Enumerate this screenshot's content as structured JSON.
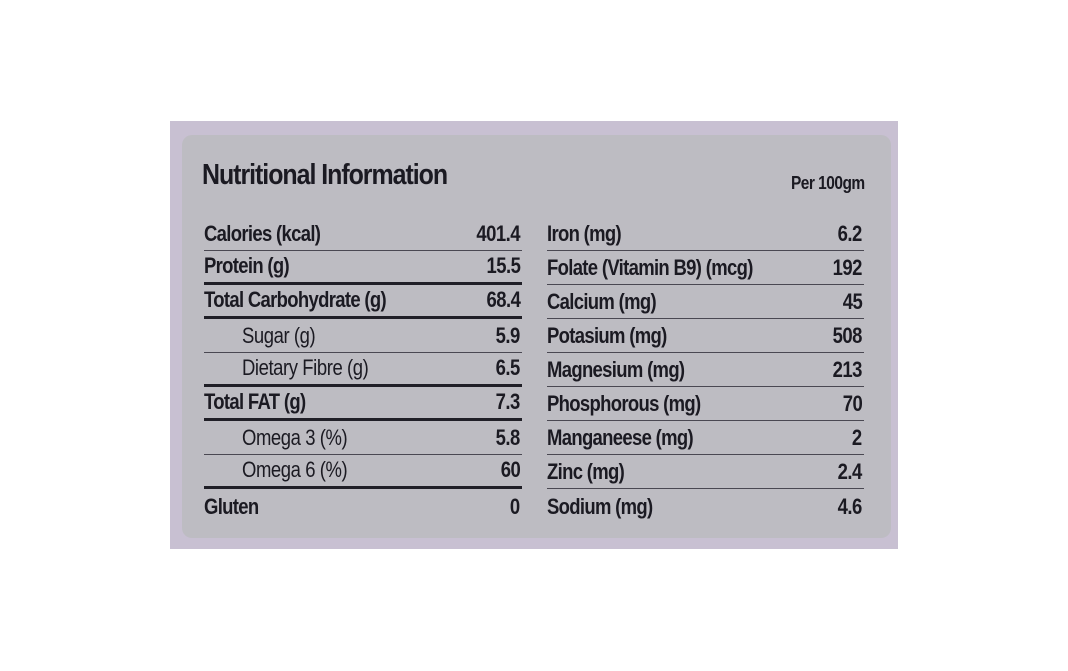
{
  "panel": {
    "title": "Nutritional Information",
    "per": "Per 100gm"
  },
  "left_rows": [
    {
      "name": "Calories (kcal)",
      "value": "401.4",
      "indent": false
    },
    {
      "name": "Protein (g)",
      "value": "15.5",
      "indent": false
    },
    {
      "name": "Total Carbohydrate (g)",
      "value": "68.4",
      "indent": false
    },
    {
      "name": "Sugar (g)",
      "value": "5.9",
      "indent": true
    },
    {
      "name": "Dietary Fibre (g)",
      "value": "6.5",
      "indent": true
    },
    {
      "name": "Total FAT (g)",
      "value": "7.3",
      "indent": false
    },
    {
      "name": "Omega 3 (%)",
      "value": "5.8",
      "indent": true
    },
    {
      "name": "Omega 6 (%)",
      "value": "60",
      "indent": true
    },
    {
      "name": "Gluten",
      "value": "0",
      "indent": false
    }
  ],
  "right_rows": [
    {
      "name": "Iron (mg)",
      "value": "6.2"
    },
    {
      "name": "Folate (Vitamin B9) (mcg)",
      "value": "192"
    },
    {
      "name": "Calcium (mg)",
      "value": "45"
    },
    {
      "name": "Potasium (mg)",
      "value": "508"
    },
    {
      "name": "Magnesium (mg)",
      "value": "213"
    },
    {
      "name": "Phosphorous (mg)",
      "value": "70"
    },
    {
      "name": "Manganeese (mg)",
      "value": "2"
    },
    {
      "name": "Zinc (mg)",
      "value": "2.4"
    },
    {
      "name": "Sodium (mg)",
      "value": "4.6"
    }
  ],
  "colors": {
    "label_background": "#bdbcc2",
    "photo_background": "#c8c0d2",
    "text": "#1b1a22"
  }
}
